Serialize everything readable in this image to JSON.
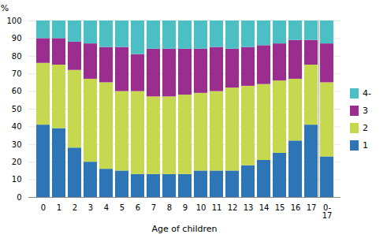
{
  "chart_data": {
    "type": "bar",
    "stacked": true,
    "xlabel": "Age of children",
    "ylabel": "%",
    "categories": [
      "0",
      "1",
      "2",
      "3",
      "4",
      "5",
      "6",
      "7",
      "8",
      "9",
      "10",
      "11",
      "12",
      "13",
      "14",
      "15",
      "16",
      "17",
      "0-\n17"
    ],
    "series": [
      {
        "name": "1",
        "color": "#2E75B6",
        "values": [
          41,
          39,
          28,
          20,
          16,
          15,
          13,
          13,
          13,
          13,
          15,
          15,
          15,
          18,
          21,
          25,
          32,
          41,
          23
        ]
      },
      {
        "name": "2",
        "color": "#C5D84E",
        "values": [
          35,
          36,
          44,
          47,
          49,
          45,
          47,
          44,
          44,
          45,
          44,
          45,
          47,
          45,
          43,
          41,
          35,
          34,
          42
        ]
      },
      {
        "name": "3",
        "color": "#9B2D8E",
        "values": [
          14,
          15,
          16,
          20,
          20,
          25,
          21,
          27,
          27,
          26,
          25,
          25,
          22,
          22,
          22,
          21,
          22,
          14,
          22
        ]
      },
      {
        "name": "4-",
        "color": "#4BBFC4",
        "values": [
          10,
          10,
          12,
          13,
          15,
          15,
          19,
          16,
          16,
          16,
          16,
          15,
          16,
          15,
          14,
          13,
          11,
          11,
          13
        ]
      }
    ],
    "ylim": [
      0,
      100
    ],
    "yticks": [
      0,
      10,
      20,
      30,
      40,
      50,
      60,
      70,
      80,
      90,
      100
    ],
    "grid": true,
    "legend": "right"
  }
}
